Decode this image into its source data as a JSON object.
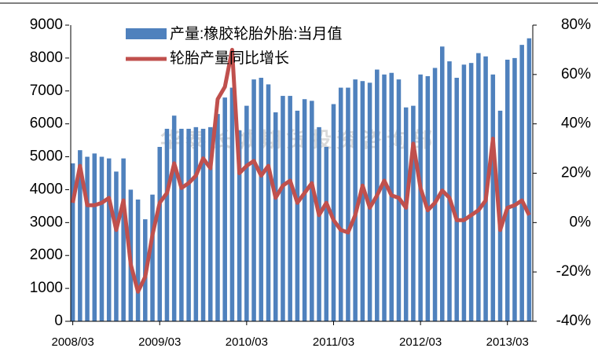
{
  "chart_data": {
    "type": "bar-line",
    "categories": [
      "2008/03",
      null,
      null,
      null,
      null,
      null,
      null,
      null,
      null,
      null,
      null,
      null,
      "2009/03",
      null,
      null,
      null,
      null,
      null,
      null,
      null,
      null,
      null,
      null,
      null,
      "2010/03",
      null,
      null,
      null,
      null,
      null,
      null,
      null,
      null,
      null,
      null,
      null,
      "2011/03",
      null,
      null,
      null,
      null,
      null,
      null,
      null,
      null,
      null,
      null,
      null,
      "2012/03",
      null,
      null,
      null,
      null,
      null,
      null,
      null,
      null,
      null,
      null,
      null,
      "2013/03",
      null,
      null,
      null
    ],
    "series": [
      {
        "name": "产量:橡胶轮胎外胎:当月值",
        "type": "bar",
        "color": "#4f81bd",
        "values": [
          4800,
          5200,
          5000,
          5100,
          5000,
          4950,
          4550,
          4950,
          4000,
          3700,
          3100,
          3850,
          5300,
          5850,
          6250,
          5850,
          5850,
          5900,
          5850,
          5900,
          6300,
          6800,
          7100,
          5800,
          6550,
          7350,
          7400,
          7200,
          6350,
          6850,
          6850,
          6400,
          6750,
          6700,
          5900,
          5300,
          6600,
          7100,
          7100,
          7350,
          7300,
          7250,
          7650,
          7500,
          7550,
          7350,
          6500,
          6550,
          7500,
          7450,
          7700,
          8350,
          7900,
          7400,
          7800,
          7850,
          8150,
          8050,
          7500,
          6400,
          7950,
          8000,
          8400,
          8600
        ]
      },
      {
        "name": "轮胎产量同比增长",
        "type": "line",
        "axis": "y2",
        "color": "#c0504d",
        "values": [
          8,
          23,
          7,
          7,
          8,
          10,
          -3,
          9,
          -17,
          -28,
          -22,
          -5,
          8,
          12,
          24,
          14,
          16,
          19,
          26,
          22,
          50,
          55,
          70,
          20,
          23,
          25,
          19,
          23,
          10,
          15,
          17,
          8,
          12,
          16,
          3,
          8,
          1,
          -3,
          -4,
          3,
          15,
          6,
          11,
          17,
          11,
          10,
          6,
          32,
          14,
          5,
          8,
          13,
          10,
          1,
          1,
          3,
          5,
          9,
          34,
          -3,
          6,
          7,
          9,
          3
        ]
      }
    ],
    "ylim": [
      0,
      9000
    ],
    "yticks": [
      0,
      1000,
      2000,
      3000,
      4000,
      5000,
      6000,
      7000,
      8000,
      9000
    ],
    "y2lim": [
      -40,
      80
    ],
    "y2ticks": [
      {
        "value": -40,
        "label": "-40%"
      },
      {
        "value": -20,
        "label": "-20%"
      },
      {
        "value": 0,
        "label": "0%"
      },
      {
        "value": 20,
        "label": "20%"
      },
      {
        "value": 40,
        "label": "40%"
      },
      {
        "value": 60,
        "label": "60%"
      },
      {
        "value": 80,
        "label": "80%"
      }
    ],
    "annotations": [
      "华泰长城期货投资咨询部"
    ]
  }
}
